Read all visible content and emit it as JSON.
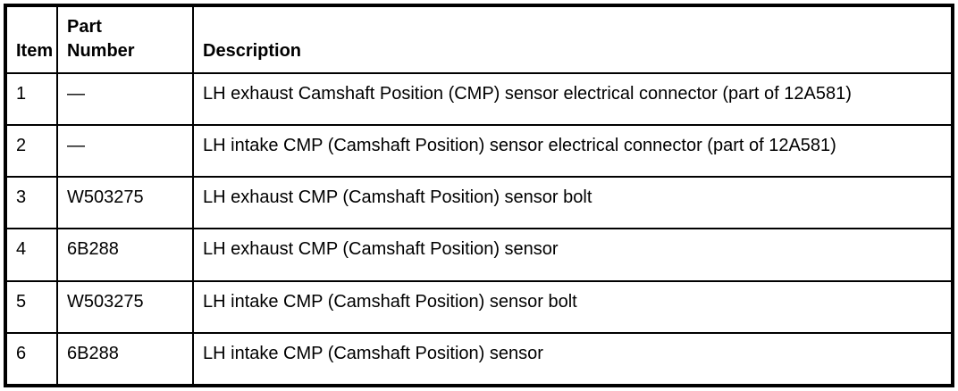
{
  "colors": {
    "border": "#000000",
    "text": "#000000",
    "background": "#ffffff"
  },
  "table": {
    "columns": [
      {
        "key": "item",
        "label": "Item"
      },
      {
        "key": "part_number",
        "label": "Part Number"
      },
      {
        "key": "description",
        "label": "Description"
      }
    ],
    "rows": [
      {
        "item": "1",
        "part_number": "—",
        "description": "LH exhaust Camshaft Position (CMP) sensor electrical connector (part of 12A581)"
      },
      {
        "item": "2",
        "part_number": "—",
        "description": "LH intake CMP (Camshaft Position) sensor electrical connector (part of 12A581)"
      },
      {
        "item": "3",
        "part_number": "W503275",
        "description": "LH exhaust CMP (Camshaft Position) sensor bolt"
      },
      {
        "item": "4",
        "part_number": "6B288",
        "description": "LH exhaust CMP (Camshaft Position) sensor"
      },
      {
        "item": "5",
        "part_number": "W503275",
        "description": "LH intake CMP (Camshaft Position) sensor bolt"
      },
      {
        "item": "6",
        "part_number": "6B288",
        "description": "LH intake CMP (Camshaft Position) sensor"
      }
    ]
  }
}
